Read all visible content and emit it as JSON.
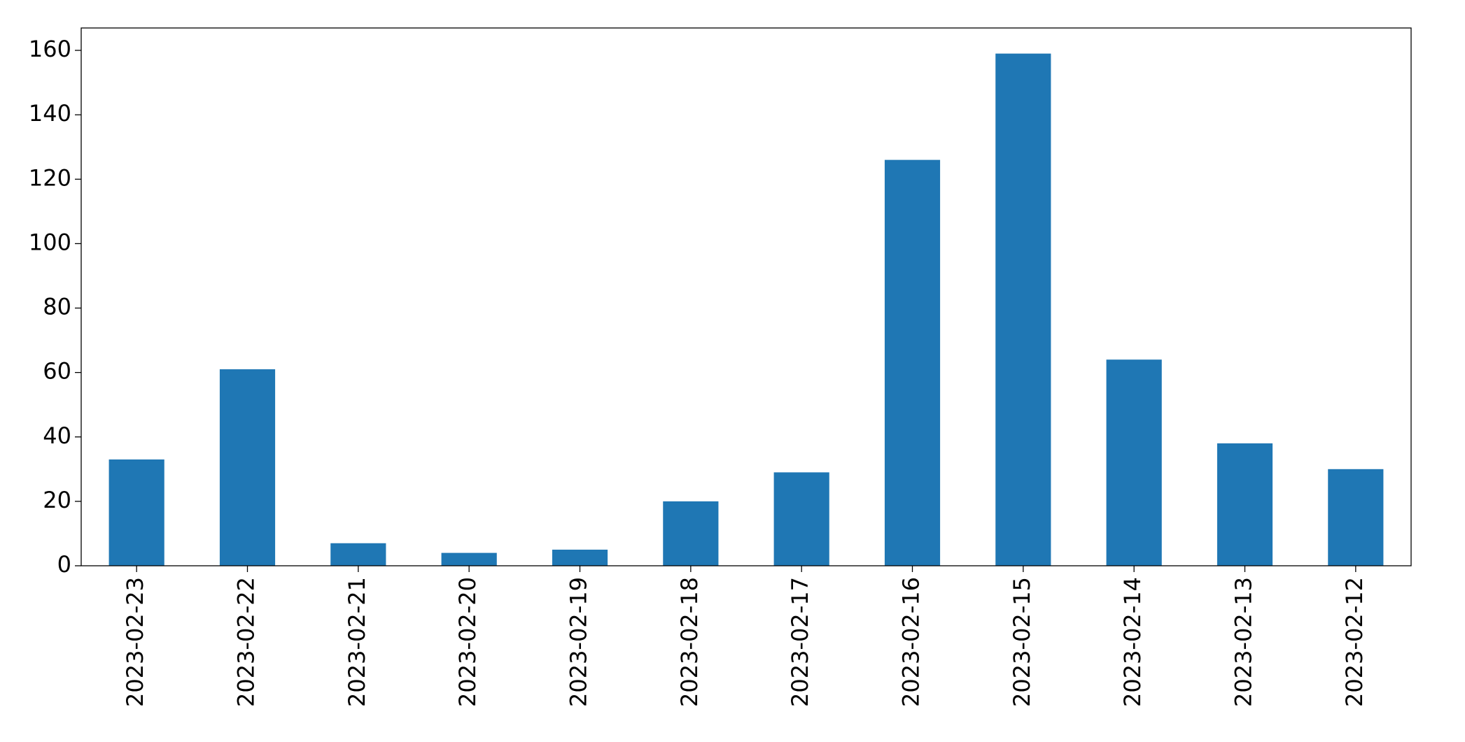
{
  "chart_data": {
    "type": "bar",
    "categories": [
      "2023-02-23",
      "2023-02-22",
      "2023-02-21",
      "2023-02-20",
      "2023-02-19",
      "2023-02-18",
      "2023-02-17",
      "2023-02-16",
      "2023-02-15",
      "2023-02-14",
      "2023-02-13",
      "2023-02-12"
    ],
    "values": [
      33,
      61,
      7,
      4,
      5,
      20,
      29,
      126,
      159,
      64,
      38,
      30
    ],
    "color": "#1f77b4",
    "ylim": [
      0,
      166.95
    ],
    "yticks": [
      0,
      20,
      40,
      60,
      80,
      100,
      120,
      140,
      160
    ],
    "grid": false
  }
}
